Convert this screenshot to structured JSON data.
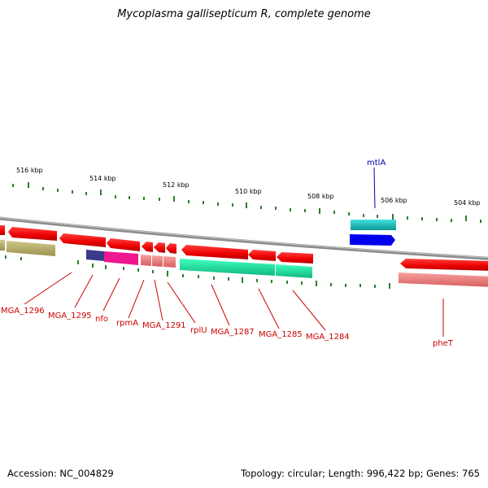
{
  "title": "Mycoplasma gallisepticum R, complete genome",
  "footer": {
    "accession": "Accession: NC_004829",
    "topology": "Topology: circular; Length: 996,422 bp; Genes: 765"
  },
  "ruler_labels": [
    "516 kbp",
    "514 kbp",
    "512 kbp",
    "510 kbp",
    "508 kbp",
    "506 kbp",
    "504 kbp"
  ],
  "gene_labels": [
    {
      "id": "mga1296",
      "text": "MGA_1296",
      "color": "#cc0000"
    },
    {
      "id": "mga1295",
      "text": "MGA_1295",
      "color": "#cc0000"
    },
    {
      "id": "nfo",
      "text": "nfo",
      "color": "#cc0000"
    },
    {
      "id": "rpma",
      "text": "rpmA",
      "color": "#cc0000"
    },
    {
      "id": "mga1291",
      "text": "MGA_1291",
      "color": "#cc0000"
    },
    {
      "id": "rpliu",
      "text": "rplU",
      "color": "#cc0000"
    },
    {
      "id": "mga1287",
      "text": "MGA_1287",
      "color": "#cc0000"
    },
    {
      "id": "mga1285",
      "text": "MGA_1285",
      "color": "#cc0000"
    },
    {
      "id": "mga1284",
      "text": "MGA_1284",
      "color": "#cc0000"
    },
    {
      "id": "phet",
      "text": "pheT",
      "color": "#cc0000"
    },
    {
      "id": "mtla",
      "text": "mtlA",
      "color": "#0000aa"
    }
  ],
  "colors": {
    "backbone": "#8c8c8c",
    "tick": "#2e7d2e",
    "cds_forward": "#ee0000",
    "rna_light": "#f08080",
    "olive": "#b8b070",
    "teal": "#20c0c0",
    "blue": "#0000ee",
    "navy": "#3a3a8a",
    "magenta": "#ee1890",
    "green": "#20e8a0"
  }
}
